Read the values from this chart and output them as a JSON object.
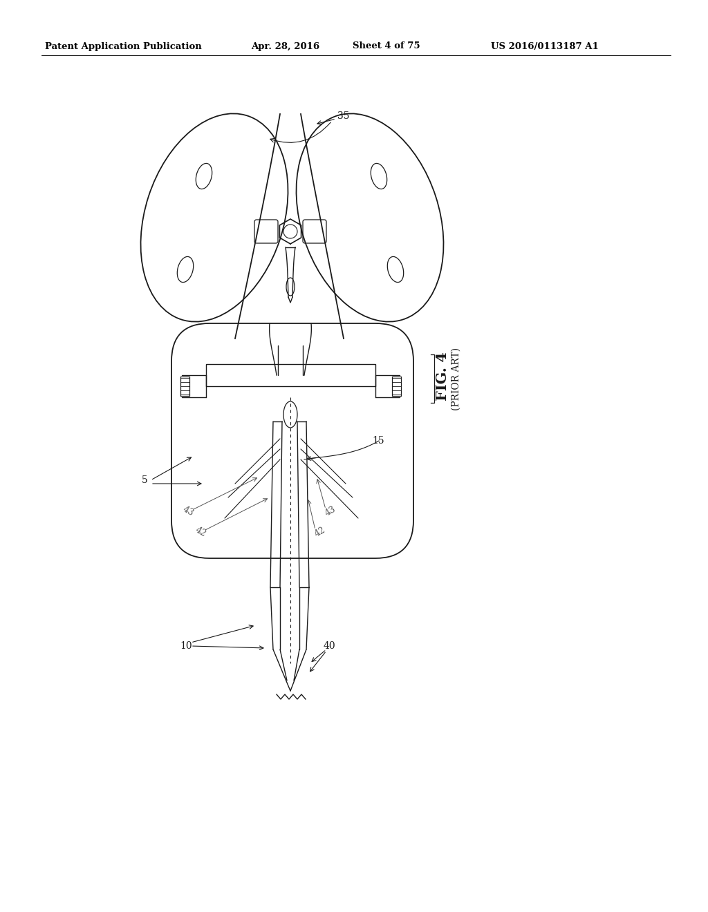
{
  "bg_color": "#ffffff",
  "line_color": "#1a1a1a",
  "header_text": "Patent Application Publication",
  "header_date": "Apr. 28, 2016",
  "header_sheet": "Sheet 4 of 75",
  "header_patent": "US 2016/0113187 A1",
  "fig_label": "FIG. 4",
  "fig_sublabel": "(PRIOR ART)"
}
